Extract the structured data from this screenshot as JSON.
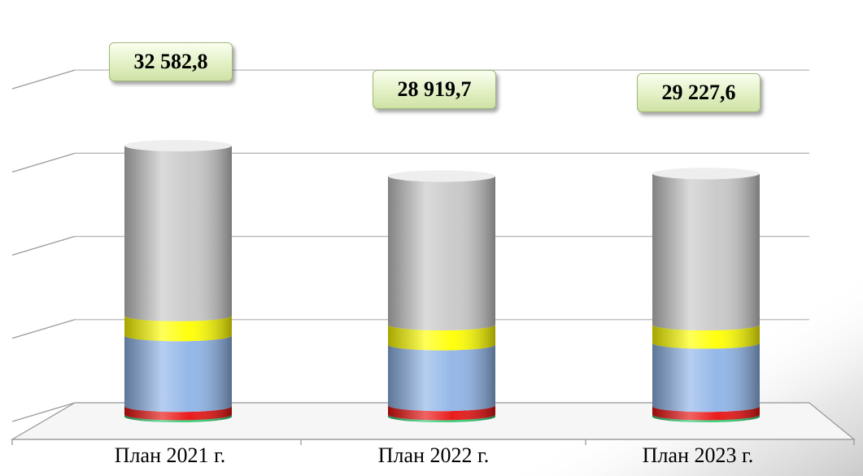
{
  "chart_data": {
    "type": "bar",
    "stacked": true,
    "style": "3d-cylinder",
    "title": "",
    "xlabel": "",
    "ylabel": "",
    "categories": [
      "План 2021 г.",
      "План 2022 г.",
      "План 2023 г."
    ],
    "totals": [
      "32 582,8",
      "28 919,7",
      "29 227,6"
    ],
    "total_values": [
      32582.8,
      28919.7,
      29227.6
    ],
    "series": [
      {
        "color": "#2ecc71",
        "values": [
          250,
          250,
          250
        ]
      },
      {
        "color": "#e81010",
        "values": [
          1000,
          1100,
          1000
        ]
      },
      {
        "color": "#8fb4e8",
        "values": [
          8500,
          7300,
          7600
        ]
      },
      {
        "color": "#ffff00",
        "values": [
          2400,
          2400,
          2200
        ]
      },
      {
        "color": "#c8c8c8",
        "values": [
          20432.8,
          17869.7,
          18177.6
        ]
      }
    ],
    "ylim": [
      0,
      45000
    ],
    "grid": true,
    "legend": "none"
  }
}
